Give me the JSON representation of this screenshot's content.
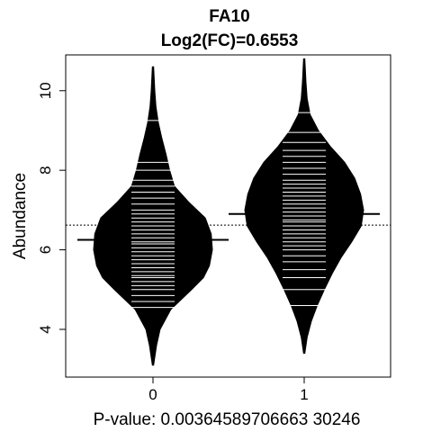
{
  "chart_data": {
    "type": "beanplot",
    "title": "FA10",
    "subtitle": "Log2(FC)=0.6553",
    "xlabel": "P-value: 0.00364589706663 30246",
    "ylabel": "Abundance",
    "categories": [
      "0",
      "1"
    ],
    "y_ticks": [
      "4",
      "6",
      "8",
      "10"
    ],
    "ylim": [
      2.8,
      10.9
    ],
    "overall_mean": 6.62,
    "series": [
      {
        "category": "0",
        "mean": 6.25,
        "max_line": 9.25,
        "density": [
          [
            3.1,
            0.01
          ],
          [
            3.6,
            0.06
          ],
          [
            4.0,
            0.12
          ],
          [
            4.5,
            0.3
          ],
          [
            5.0,
            0.65
          ],
          [
            5.3,
            0.85
          ],
          [
            5.6,
            0.95
          ],
          [
            6.0,
            1.0
          ],
          [
            6.4,
            0.98
          ],
          [
            6.8,
            0.88
          ],
          [
            7.2,
            0.6
          ],
          [
            7.6,
            0.36
          ],
          [
            8.0,
            0.28
          ],
          [
            8.4,
            0.22
          ],
          [
            8.8,
            0.15
          ],
          [
            9.2,
            0.09
          ],
          [
            9.6,
            0.05
          ],
          [
            10.0,
            0.03
          ],
          [
            10.6,
            0.01
          ]
        ],
        "observations": [
          4.55,
          4.7,
          4.85,
          5.0,
          5.1,
          5.2,
          5.3,
          5.35,
          5.45,
          5.55,
          5.65,
          5.75,
          5.85,
          5.95,
          6.05,
          6.15,
          6.2,
          6.3,
          6.4,
          6.5,
          6.6,
          6.7,
          6.8,
          6.9,
          7.0,
          7.15,
          7.3,
          7.45,
          7.6,
          7.75,
          8.0,
          8.2
        ]
      },
      {
        "category": "1",
        "mean": 6.9,
        "max_line": 9.45,
        "density": [
          [
            3.4,
            0.01
          ],
          [
            3.8,
            0.05
          ],
          [
            4.2,
            0.12
          ],
          [
            4.6,
            0.22
          ],
          [
            5.0,
            0.34
          ],
          [
            5.4,
            0.47
          ],
          [
            5.8,
            0.62
          ],
          [
            6.2,
            0.8
          ],
          [
            6.6,
            0.96
          ],
          [
            7.0,
            1.0
          ],
          [
            7.4,
            0.95
          ],
          [
            7.8,
            0.85
          ],
          [
            8.2,
            0.68
          ],
          [
            8.6,
            0.44
          ],
          [
            9.0,
            0.24
          ],
          [
            9.4,
            0.1
          ],
          [
            9.8,
            0.05
          ],
          [
            10.2,
            0.03
          ],
          [
            10.8,
            0.01
          ]
        ],
        "observations": [
          4.6,
          5.0,
          5.3,
          5.5,
          5.7,
          5.85,
          6.0,
          6.1,
          6.2,
          6.3,
          6.4,
          6.5,
          6.6,
          6.7,
          6.75,
          6.85,
          6.95,
          7.05,
          7.15,
          7.25,
          7.35,
          7.45,
          7.55,
          7.65,
          7.75,
          7.9,
          8.05,
          8.2,
          8.35,
          8.5,
          8.7,
          8.95
        ]
      }
    ],
    "colors": {
      "bean": "#000000",
      "line": "#ffffff",
      "axis": "#000000",
      "background": "#ffffff"
    },
    "grid": false
  }
}
